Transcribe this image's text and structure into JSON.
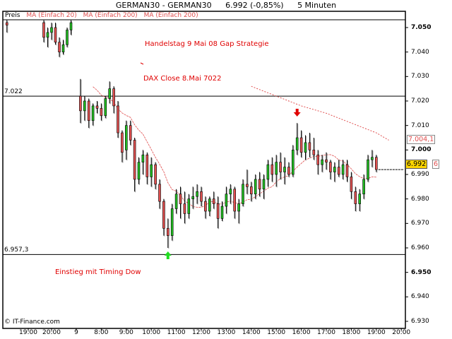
{
  "header": {
    "symbol": "GERMAN30 - GERMAN30",
    "last": "6.992 (-0,85%)",
    "interval": "5 Minuten"
  },
  "legend": {
    "price": "Preis",
    "ma1": "MA (Einfach 20)",
    "ma2": "MA (Einfach 200)",
    "ma3": "MA (Einfach 200)"
  },
  "annotations": {
    "note1": "Handelstag 9 Mai 08 Gap Strategie",
    "note2": "DAX Close 8.Mai 7022",
    "note3": "Einstieg mit Timing Dow"
  },
  "hlines": [
    {
      "value": 7.022,
      "label": "7.022"
    },
    {
      "value": 6.9573,
      "label": "6.957,3"
    }
  ],
  "markers": [
    {
      "type": "arrow-down",
      "color": "#e00000",
      "time": "9 15:50"
    },
    {
      "type": "arrow-up",
      "color": "#22dd22",
      "time": "9 10:40"
    }
  ],
  "price_box": "6.992",
  "ma20_box": "6",
  "ma200_box": "7.004,1",
  "copyright": "© IT-Finance.com",
  "colors": {
    "up": "#22bb22",
    "down": "#e05050",
    "ma": "#e05050",
    "accent": "#ffd700"
  },
  "chart_data": {
    "type": "candlestick",
    "ylim": [
      6.928,
      7.055
    ],
    "yticks": [
      {
        "v": 7.05,
        "label": "7.050",
        "bold": true
      },
      {
        "v": 7.04,
        "label": "7.040"
      },
      {
        "v": 7.03,
        "label": "7.030"
      },
      {
        "v": 7.02,
        "label": "7.020"
      },
      {
        "v": 7.01,
        "label": "7.010"
      },
      {
        "v": 7.0,
        "label": "7.000",
        "bold": true
      },
      {
        "v": 6.99,
        "label": "6.990"
      },
      {
        "v": 6.98,
        "label": "6.980"
      },
      {
        "v": 6.97,
        "label": "6.970"
      },
      {
        "v": 6.96,
        "label": "6.960"
      },
      {
        "v": 6.95,
        "label": "6.950",
        "bold": true
      },
      {
        "v": 6.94,
        "label": "6.940"
      },
      {
        "v": 6.93,
        "label": "6.930"
      }
    ],
    "xticks": [
      {
        "t": "8 19:00",
        "label": "19:00"
      },
      {
        "t": "8 20:00",
        "label": "20:00"
      },
      {
        "t": "9 07:00",
        "label": "9"
      },
      {
        "t": "9 08:00",
        "label": "8:00"
      },
      {
        "t": "9 09:00",
        "label": "9:00"
      },
      {
        "t": "9 10:00",
        "label": "10:00"
      },
      {
        "t": "9 11:00",
        "label": "11:00"
      },
      {
        "t": "9 12:00",
        "label": "12:00"
      },
      {
        "t": "9 13:00",
        "label": "13:00"
      },
      {
        "t": "9 14:00",
        "label": "14:00"
      },
      {
        "t": "9 15:00",
        "label": "15:00"
      },
      {
        "t": "9 16:00",
        "label": "16:00"
      },
      {
        "t": "9 17:00",
        "label": "17:00"
      },
      {
        "t": "9 18:00",
        "label": "18:00"
      },
      {
        "t": "9 19:00",
        "label": "19:00"
      },
      {
        "t": "9 20:00",
        "label": "20:00"
      }
    ],
    "candles": [
      [
        "8 18:05",
        7.052,
        7.053,
        7.048,
        7.051
      ],
      [
        "8 19:40",
        7.052,
        7.053,
        7.044,
        7.046
      ],
      [
        "8 19:50",
        7.046,
        7.05,
        7.042,
        7.048
      ],
      [
        "8 20:00",
        7.048,
        7.052,
        7.045,
        7.05
      ],
      [
        "8 20:10",
        7.05,
        7.052,
        7.043,
        7.044
      ],
      [
        "8 20:20",
        7.044,
        7.046,
        7.038,
        7.04
      ],
      [
        "8 20:30",
        7.04,
        7.045,
        7.039,
        7.043
      ],
      [
        "8 20:40",
        7.043,
        7.05,
        7.042,
        7.049
      ],
      [
        "8 20:50",
        7.049,
        7.053,
        7.047,
        7.052
      ],
      [
        "9 07:10",
        7.022,
        7.029,
        7.011,
        7.016
      ],
      [
        "9 07:20",
        7.016,
        7.022,
        7.012,
        7.02
      ],
      [
        "9 07:30",
        7.02,
        7.021,
        7.009,
        7.012
      ],
      [
        "9 07:40",
        7.012,
        7.019,
        7.01,
        7.018
      ],
      [
        "9 07:50",
        7.018,
        7.02,
        7.015,
        7.017
      ],
      [
        "9 08:00",
        7.017,
        7.019,
        7.012,
        7.014
      ],
      [
        "9 08:10",
        7.014,
        7.022,
        7.013,
        7.021
      ],
      [
        "9 08:20",
        7.021,
        7.028,
        7.019,
        7.025
      ],
      [
        "9 08:30",
        7.025,
        7.026,
        7.015,
        7.018
      ],
      [
        "9 08:40",
        7.018,
        7.02,
        7.005,
        7.007
      ],
      [
        "9 08:50",
        7.007,
        7.008,
        6.995,
        6.999
      ],
      [
        "9 09:00",
        7.0,
        7.012,
        6.996,
        7.01
      ],
      [
        "9 09:10",
        7.01,
        7.012,
        7.002,
        7.004
      ],
      [
        "9 09:20",
        7.004,
        7.005,
        6.983,
        6.988
      ],
      [
        "9 09:30",
        6.988,
        6.997,
        6.986,
        6.995
      ],
      [
        "9 09:40",
        6.995,
        7.0,
        6.99,
        6.998
      ],
      [
        "9 09:50",
        6.998,
        6.999,
        6.986,
        6.989
      ],
      [
        "9 10:00",
        6.989,
        6.997,
        6.985,
        6.994
      ],
      [
        "9 10:10",
        6.994,
        6.995,
        6.984,
        6.986
      ],
      [
        "9 10:20",
        6.986,
        6.988,
        6.976,
        6.979
      ],
      [
        "9 10:30",
        6.979,
        6.98,
        6.965,
        6.968
      ],
      [
        "9 10:40",
        6.968,
        6.972,
        6.96,
        6.965
      ],
      [
        "9 10:50",
        6.965,
        6.978,
        6.963,
        6.976
      ],
      [
        "9 11:00",
        6.976,
        6.984,
        6.974,
        6.982
      ],
      [
        "9 11:10",
        6.982,
        6.985,
        6.972,
        6.978
      ],
      [
        "9 11:20",
        6.978,
        6.983,
        6.97,
        6.974
      ],
      [
        "9 11:30",
        6.974,
        6.982,
        6.972,
        6.98
      ],
      [
        "9 11:40",
        6.98,
        6.985,
        6.976,
        6.981
      ],
      [
        "9 11:50",
        6.981,
        6.986,
        6.978,
        6.983
      ],
      [
        "9 12:00",
        6.983,
        6.985,
        6.977,
        6.979
      ],
      [
        "9 12:10",
        6.979,
        6.981,
        6.972,
        6.975
      ],
      [
        "9 12:20",
        6.975,
        6.981,
        6.973,
        6.98
      ],
      [
        "9 12:30",
        6.98,
        6.983,
        6.976,
        6.978
      ],
      [
        "9 12:40",
        6.978,
        6.981,
        6.968,
        6.972
      ],
      [
        "9 12:50",
        6.972,
        6.979,
        6.971,
        6.977
      ],
      [
        "9 13:00",
        6.977,
        6.985,
        6.974,
        6.982
      ],
      [
        "9 13:10",
        6.982,
        6.986,
        6.978,
        6.984
      ],
      [
        "9 13:20",
        6.984,
        6.985,
        6.972,
        6.975
      ],
      [
        "9 13:30",
        6.975,
        6.98,
        6.97,
        6.978
      ],
      [
        "9 13:40",
        6.978,
        6.988,
        6.977,
        6.986
      ],
      [
        "9 13:50",
        6.986,
        6.992,
        6.982,
        6.985
      ],
      [
        "9 14:00",
        6.985,
        6.987,
        6.979,
        6.982
      ],
      [
        "9 14:10",
        6.982,
        6.99,
        6.98,
        6.988
      ],
      [
        "9 14:20",
        6.988,
        6.991,
        6.981,
        6.984
      ],
      [
        "9 14:30",
        6.984,
        6.99,
        6.98,
        6.988
      ],
      [
        "9 14:40",
        6.988,
        6.996,
        6.985,
        6.994
      ],
      [
        "9 14:50",
        6.994,
        6.997,
        6.987,
        6.99
      ],
      [
        "9 15:00",
        6.99,
        6.998,
        6.985,
        6.995
      ],
      [
        "9 15:10",
        6.995,
        6.999,
        6.988,
        6.991
      ],
      [
        "9 15:20",
        6.991,
        6.997,
        6.986,
        6.993
      ],
      [
        "9 15:30",
        6.993,
        6.995,
        6.989,
        6.99
      ],
      [
        "9 15:40",
        6.99,
        7.002,
        6.989,
        7.0
      ],
      [
        "9 15:50",
        7.0,
        7.011,
        6.998,
        7.005
      ],
      [
        "9 16:00",
        7.005,
        7.008,
        6.997,
        6.999
      ],
      [
        "9 16:10",
        6.999,
        7.006,
        6.996,
        7.003
      ],
      [
        "9 16:20",
        7.003,
        7.007,
        6.997,
        7.0
      ],
      [
        "9 16:30",
        7.0,
        7.005,
        6.996,
        6.998
      ],
      [
        "9 16:40",
        6.998,
        7.0,
        6.99,
        6.994
      ],
      [
        "9 16:50",
        6.994,
        6.998,
        6.991,
        6.996
      ],
      [
        "9 17:00",
        6.996,
        6.999,
        6.992,
        6.995
      ],
      [
        "9 17:10",
        6.995,
        6.996,
        6.988,
        6.991
      ],
      [
        "9 17:20",
        6.991,
        6.995,
        6.987,
        6.993
      ],
      [
        "9 17:30",
        6.993,
        6.996,
        6.989,
        6.99
      ],
      [
        "9 17:40",
        6.99,
        6.996,
        6.988,
        6.994
      ],
      [
        "9 17:50",
        6.994,
        6.996,
        6.987,
        6.989
      ],
      [
        "9 18:00",
        6.989,
        6.991,
        6.98,
        6.983
      ],
      [
        "9 18:10",
        6.983,
        6.985,
        6.975,
        6.978
      ],
      [
        "9 18:20",
        6.978,
        6.984,
        6.975,
        6.982
      ],
      [
        "9 18:30",
        6.982,
        6.99,
        6.98,
        6.988
      ],
      [
        "9 18:40",
        6.988,
        6.998,
        6.987,
        6.996
      ],
      [
        "9 18:50",
        6.996,
        7.0,
        6.993,
        6.997
      ],
      [
        "9 19:00",
        6.997,
        6.998,
        6.991,
        6.992
      ]
    ],
    "ma200": [
      [
        "9 14:00",
        7.026
      ],
      [
        "9 15:00",
        7.022
      ],
      [
        "9 16:00",
        7.018
      ],
      [
        "9 17:00",
        7.015
      ],
      [
        "9 18:00",
        7.011
      ],
      [
        "9 19:00",
        7.007
      ],
      [
        "9 19:30",
        7.004
      ]
    ]
  }
}
